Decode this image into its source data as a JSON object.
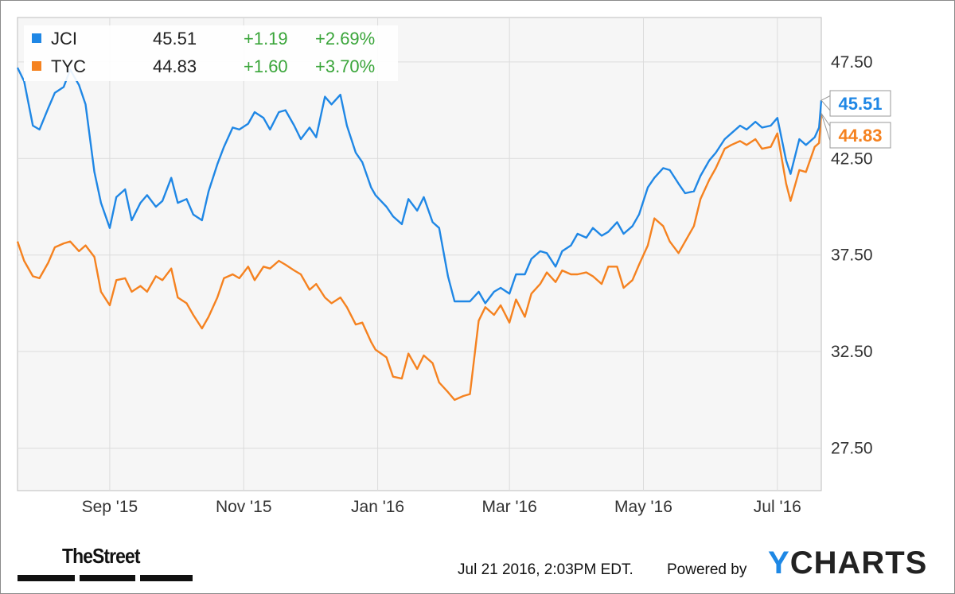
{
  "legend": [
    {
      "symbol": "JCI",
      "price": "45.51",
      "change": "+1.19",
      "pct": "+2.69%",
      "color": "#1f87e5"
    },
    {
      "symbol": "TYC",
      "price": "44.83",
      "change": "+1.60",
      "pct": "+3.70%",
      "color": "#f58220"
    }
  ],
  "footer": {
    "timestamp": "Jul 21 2016, 2:03PM EDT.",
    "powered": "Powered by",
    "brand_y": "Y",
    "brand_rest": "CHARTS",
    "logo": "TheStreet"
  },
  "colors": {
    "positive": "#3aa53a",
    "grid": "#dcdcdc",
    "plot_bg": "#f6f6f6"
  },
  "chart_data": {
    "type": "line",
    "x_tick_labels": [
      "Sep '15",
      "Nov '15",
      "Jan '16",
      "Mar '16",
      "May '16",
      "Jul '16"
    ],
    "x_tick_dates": [
      "2015-09-01",
      "2015-11-01",
      "2016-01-01",
      "2016-03-01",
      "2016-05-01",
      "2016-07-01"
    ],
    "x_range": [
      "2015-07-21",
      "2016-07-21"
    ],
    "y_tick_labels": [
      "27.50",
      "32.50",
      "37.50",
      "42.50",
      "47.50"
    ],
    "y_ticks": [
      27.5,
      32.5,
      37.5,
      42.5,
      47.5
    ],
    "ylim": [
      25.3,
      49.8
    ],
    "end_labels": [
      "45.51",
      "44.83"
    ],
    "grid": true,
    "legend_position": "top-left",
    "series": [
      {
        "name": "JCI",
        "color": "#1f87e5",
        "points": [
          [
            "2015-07-21",
            47.2
          ],
          [
            "2015-07-24",
            46.5
          ],
          [
            "2015-07-28",
            44.2
          ],
          [
            "2015-07-31",
            44.0
          ],
          [
            "2015-08-04",
            45.1
          ],
          [
            "2015-08-07",
            45.9
          ],
          [
            "2015-08-11",
            46.2
          ],
          [
            "2015-08-14",
            47.1
          ],
          [
            "2015-08-18",
            46.3
          ],
          [
            "2015-08-21",
            45.3
          ],
          [
            "2015-08-25",
            41.8
          ],
          [
            "2015-08-28",
            40.2
          ],
          [
            "2015-09-01",
            38.9
          ],
          [
            "2015-09-04",
            40.5
          ],
          [
            "2015-09-08",
            40.9
          ],
          [
            "2015-09-11",
            39.3
          ],
          [
            "2015-09-15",
            40.2
          ],
          [
            "2015-09-18",
            40.6
          ],
          [
            "2015-09-22",
            40.0
          ],
          [
            "2015-09-25",
            40.3
          ],
          [
            "2015-09-29",
            41.5
          ],
          [
            "2015-10-02",
            40.2
          ],
          [
            "2015-10-06",
            40.4
          ],
          [
            "2015-10-09",
            39.6
          ],
          [
            "2015-10-13",
            39.3
          ],
          [
            "2015-10-16",
            40.8
          ],
          [
            "2015-10-20",
            42.2
          ],
          [
            "2015-10-23",
            43.1
          ],
          [
            "2015-10-27",
            44.1
          ],
          [
            "2015-10-30",
            44.0
          ],
          [
            "2015-11-03",
            44.3
          ],
          [
            "2015-11-06",
            44.9
          ],
          [
            "2015-11-10",
            44.6
          ],
          [
            "2015-11-13",
            44.0
          ],
          [
            "2015-11-17",
            44.9
          ],
          [
            "2015-11-20",
            45.0
          ],
          [
            "2015-11-24",
            44.2
          ],
          [
            "2015-11-27",
            43.5
          ],
          [
            "2015-12-01",
            44.1
          ],
          [
            "2015-12-04",
            43.6
          ],
          [
            "2015-12-08",
            45.7
          ],
          [
            "2015-12-11",
            45.3
          ],
          [
            "2015-12-15",
            45.8
          ],
          [
            "2015-12-18",
            44.2
          ],
          [
            "2015-12-22",
            42.8
          ],
          [
            "2015-12-25",
            42.3
          ],
          [
            "2015-12-29",
            41.0
          ],
          [
            "2015-12-31",
            40.6
          ],
          [
            "2016-01-05",
            40.0
          ],
          [
            "2016-01-08",
            39.5
          ],
          [
            "2016-01-12",
            39.1
          ],
          [
            "2016-01-15",
            40.4
          ],
          [
            "2016-01-19",
            39.8
          ],
          [
            "2016-01-22",
            40.5
          ],
          [
            "2016-01-26",
            39.2
          ],
          [
            "2016-01-29",
            38.9
          ],
          [
            "2016-02-02",
            36.4
          ],
          [
            "2016-02-05",
            35.1
          ],
          [
            "2016-02-09",
            35.1
          ],
          [
            "2016-02-12",
            35.1
          ],
          [
            "2016-02-16",
            35.6
          ],
          [
            "2016-02-19",
            35.0
          ],
          [
            "2016-02-23",
            35.6
          ],
          [
            "2016-02-26",
            35.8
          ],
          [
            "2016-03-01",
            35.5
          ],
          [
            "2016-03-04",
            36.5
          ],
          [
            "2016-03-08",
            36.5
          ],
          [
            "2016-03-11",
            37.3
          ],
          [
            "2016-03-15",
            37.7
          ],
          [
            "2016-03-18",
            37.6
          ],
          [
            "2016-03-22",
            36.9
          ],
          [
            "2016-03-25",
            37.7
          ],
          [
            "2016-03-29",
            38.0
          ],
          [
            "2016-04-01",
            38.6
          ],
          [
            "2016-04-05",
            38.4
          ],
          [
            "2016-04-08",
            38.9
          ],
          [
            "2016-04-12",
            38.5
          ],
          [
            "2016-04-15",
            38.7
          ],
          [
            "2016-04-19",
            39.2
          ],
          [
            "2016-04-22",
            38.6
          ],
          [
            "2016-04-26",
            39.0
          ],
          [
            "2016-04-29",
            39.6
          ],
          [
            "2016-05-03",
            41.0
          ],
          [
            "2016-05-06",
            41.5
          ],
          [
            "2016-05-10",
            42.0
          ],
          [
            "2016-05-13",
            41.9
          ],
          [
            "2016-05-17",
            41.2
          ],
          [
            "2016-05-20",
            40.7
          ],
          [
            "2016-05-24",
            40.8
          ],
          [
            "2016-05-27",
            41.6
          ],
          [
            "2016-05-31",
            42.4
          ],
          [
            "2016-06-03",
            42.8
          ],
          [
            "2016-06-07",
            43.5
          ],
          [
            "2016-06-10",
            43.8
          ],
          [
            "2016-06-14",
            44.2
          ],
          [
            "2016-06-17",
            44.0
          ],
          [
            "2016-06-21",
            44.4
          ],
          [
            "2016-06-24",
            44.1
          ],
          [
            "2016-06-28",
            44.2
          ],
          [
            "2016-07-01",
            44.6
          ],
          [
            "2016-07-05",
            42.4
          ],
          [
            "2016-07-07",
            41.7
          ],
          [
            "2016-07-11",
            43.5
          ],
          [
            "2016-07-14",
            43.2
          ],
          [
            "2016-07-18",
            43.6
          ],
          [
            "2016-07-20",
            44.1
          ],
          [
            "2016-07-21",
            45.51
          ]
        ]
      },
      {
        "name": "TYC",
        "color": "#f58220",
        "points": [
          [
            "2015-07-21",
            38.2
          ],
          [
            "2015-07-24",
            37.2
          ],
          [
            "2015-07-28",
            36.4
          ],
          [
            "2015-07-31",
            36.3
          ],
          [
            "2015-08-04",
            37.1
          ],
          [
            "2015-08-07",
            37.9
          ],
          [
            "2015-08-11",
            38.1
          ],
          [
            "2015-08-14",
            38.2
          ],
          [
            "2015-08-18",
            37.7
          ],
          [
            "2015-08-21",
            38.0
          ],
          [
            "2015-08-25",
            37.4
          ],
          [
            "2015-08-28",
            35.6
          ],
          [
            "2015-09-01",
            34.9
          ],
          [
            "2015-09-04",
            36.2
          ],
          [
            "2015-09-08",
            36.3
          ],
          [
            "2015-09-11",
            35.6
          ],
          [
            "2015-09-15",
            35.9
          ],
          [
            "2015-09-18",
            35.6
          ],
          [
            "2015-09-22",
            36.4
          ],
          [
            "2015-09-25",
            36.2
          ],
          [
            "2015-09-29",
            36.8
          ],
          [
            "2015-10-02",
            35.3
          ],
          [
            "2015-10-06",
            35.0
          ],
          [
            "2015-10-09",
            34.4
          ],
          [
            "2015-10-13",
            33.7
          ],
          [
            "2015-10-16",
            34.3
          ],
          [
            "2015-10-20",
            35.3
          ],
          [
            "2015-10-23",
            36.3
          ],
          [
            "2015-10-27",
            36.5
          ],
          [
            "2015-10-30",
            36.3
          ],
          [
            "2015-11-03",
            36.9
          ],
          [
            "2015-11-06",
            36.2
          ],
          [
            "2015-11-10",
            36.9
          ],
          [
            "2015-11-13",
            36.8
          ],
          [
            "2015-11-17",
            37.2
          ],
          [
            "2015-11-20",
            37.0
          ],
          [
            "2015-11-24",
            36.7
          ],
          [
            "2015-11-27",
            36.5
          ],
          [
            "2015-12-01",
            35.7
          ],
          [
            "2015-12-04",
            36.0
          ],
          [
            "2015-12-08",
            35.3
          ],
          [
            "2015-12-11",
            35.0
          ],
          [
            "2015-12-15",
            35.3
          ],
          [
            "2015-12-18",
            34.8
          ],
          [
            "2015-12-22",
            33.9
          ],
          [
            "2015-12-25",
            34.0
          ],
          [
            "2015-12-29",
            33.0
          ],
          [
            "2015-12-31",
            32.6
          ],
          [
            "2016-01-05",
            32.2
          ],
          [
            "2016-01-08",
            31.2
          ],
          [
            "2016-01-12",
            31.1
          ],
          [
            "2016-01-15",
            32.4
          ],
          [
            "2016-01-19",
            31.6
          ],
          [
            "2016-01-22",
            32.3
          ],
          [
            "2016-01-26",
            31.9
          ],
          [
            "2016-01-29",
            30.9
          ],
          [
            "2016-02-02",
            30.4
          ],
          [
            "2016-02-05",
            30.0
          ],
          [
            "2016-02-09",
            30.2
          ],
          [
            "2016-02-12",
            30.3
          ],
          [
            "2016-02-16",
            34.1
          ],
          [
            "2016-02-19",
            34.8
          ],
          [
            "2016-02-23",
            34.4
          ],
          [
            "2016-02-26",
            34.9
          ],
          [
            "2016-03-01",
            34.0
          ],
          [
            "2016-03-04",
            35.2
          ],
          [
            "2016-03-08",
            34.3
          ],
          [
            "2016-03-11",
            35.5
          ],
          [
            "2016-03-15",
            36.0
          ],
          [
            "2016-03-18",
            36.6
          ],
          [
            "2016-03-22",
            36.1
          ],
          [
            "2016-03-25",
            36.7
          ],
          [
            "2016-03-29",
            36.5
          ],
          [
            "2016-04-01",
            36.5
          ],
          [
            "2016-04-05",
            36.6
          ],
          [
            "2016-04-08",
            36.4
          ],
          [
            "2016-04-12",
            36.0
          ],
          [
            "2016-04-15",
            36.9
          ],
          [
            "2016-04-19",
            36.9
          ],
          [
            "2016-04-22",
            35.8
          ],
          [
            "2016-04-26",
            36.2
          ],
          [
            "2016-04-29",
            37.0
          ],
          [
            "2016-05-03",
            38.0
          ],
          [
            "2016-05-06",
            39.4
          ],
          [
            "2016-05-10",
            39.0
          ],
          [
            "2016-05-13",
            38.2
          ],
          [
            "2016-05-17",
            37.6
          ],
          [
            "2016-05-20",
            38.2
          ],
          [
            "2016-05-24",
            39.0
          ],
          [
            "2016-05-27",
            40.4
          ],
          [
            "2016-05-31",
            41.4
          ],
          [
            "2016-06-03",
            42.0
          ],
          [
            "2016-06-07",
            43.0
          ],
          [
            "2016-06-10",
            43.2
          ],
          [
            "2016-06-14",
            43.4
          ],
          [
            "2016-06-17",
            43.2
          ],
          [
            "2016-06-21",
            43.5
          ],
          [
            "2016-06-24",
            43.0
          ],
          [
            "2016-06-28",
            43.1
          ],
          [
            "2016-07-01",
            43.8
          ],
          [
            "2016-07-05",
            41.2
          ],
          [
            "2016-07-07",
            40.3
          ],
          [
            "2016-07-11",
            41.9
          ],
          [
            "2016-07-14",
            41.8
          ],
          [
            "2016-07-18",
            43.1
          ],
          [
            "2016-07-20",
            43.3
          ],
          [
            "2016-07-21",
            44.83
          ]
        ]
      }
    ]
  }
}
